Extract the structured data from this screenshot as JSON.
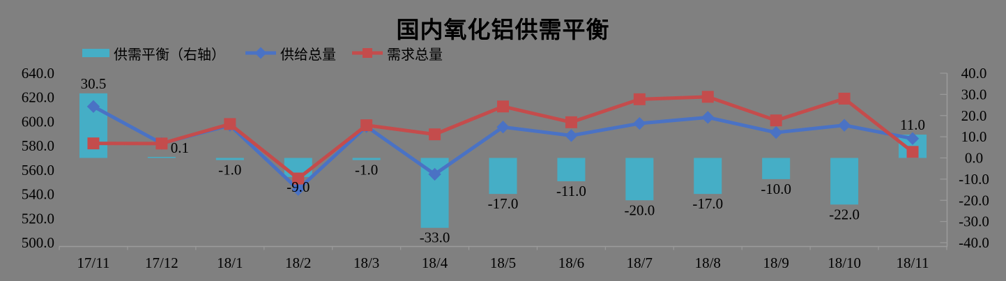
{
  "title": "国内氧化铝供需平衡",
  "legend": {
    "balance_label": "供需平衡（右轴）",
    "supply_label": "供给总量",
    "demand_label": "需求总量"
  },
  "colors": {
    "background": "#808080",
    "bar": "#45AEC6",
    "supply_line": "#4A72C4",
    "demand_line": "#C44C4C",
    "axis_line": "#9B9B9B",
    "text": "#000000"
  },
  "chart_data": {
    "type": "bar",
    "subtype": "combo-bar-line-dual-axis",
    "title": "国内氧化铝供需平衡",
    "categories": [
      "17/11",
      "17/12",
      "18/1",
      "18/2",
      "18/3",
      "18/4",
      "18/5",
      "18/6",
      "18/7",
      "18/8",
      "18/9",
      "18/10",
      "18/11"
    ],
    "series": [
      {
        "name": "供需平衡（右轴）",
        "type": "bar",
        "axis": "right",
        "color": "#45AEC6",
        "values": [
          30.5,
          0.1,
          -1.0,
          -9.0,
          -1.0,
          -33.0,
          -17.0,
          -11.0,
          -20.0,
          -17.0,
          -10.0,
          -22.0,
          11.0
        ],
        "labels": [
          "30.5",
          "0.1",
          "-1.0",
          "-9.0",
          "-1.0",
          "-33.0",
          "-17.0",
          "-11.0",
          "-20.0",
          "-17.0",
          "-10.0",
          "-22.0",
          "11.0"
        ]
      },
      {
        "name": "供给总量",
        "type": "line",
        "marker": "diamond",
        "axis": "left",
        "color": "#4A72C4",
        "values": [
          612.5,
          582.0,
          597.0,
          544.0,
          596.0,
          556.5,
          595.5,
          588.5,
          598.5,
          603.5,
          591.0,
          597.0,
          586.0
        ]
      },
      {
        "name": "需求总量",
        "type": "line",
        "marker": "square",
        "axis": "left",
        "color": "#C44C4C",
        "values": [
          582.0,
          581.9,
          598.0,
          553.0,
          597.0,
          589.5,
          612.5,
          599.5,
          618.5,
          620.5,
          601.0,
          619.0,
          575.0
        ]
      }
    ],
    "axis_left": {
      "min": 500,
      "max": 640,
      "step": 20,
      "tick_labels": [
        "640.0",
        "620.0",
        "600.0",
        "580.0",
        "560.0",
        "540.0",
        "520.0",
        "500.0"
      ]
    },
    "axis_right": {
      "min": -40,
      "max": 40,
      "step": 10,
      "tick_labels": [
        "40.0",
        "30.0",
        "20.0",
        "10.0",
        "0.0",
        "-10.0",
        "-20.0",
        "-30.0",
        "-40.0"
      ]
    },
    "grid": false,
    "legend_position": "top-left",
    "bar_label_dx": [
      0,
      26,
      0,
      0,
      0,
      0,
      0,
      0,
      0,
      0,
      0,
      0,
      0
    ]
  }
}
